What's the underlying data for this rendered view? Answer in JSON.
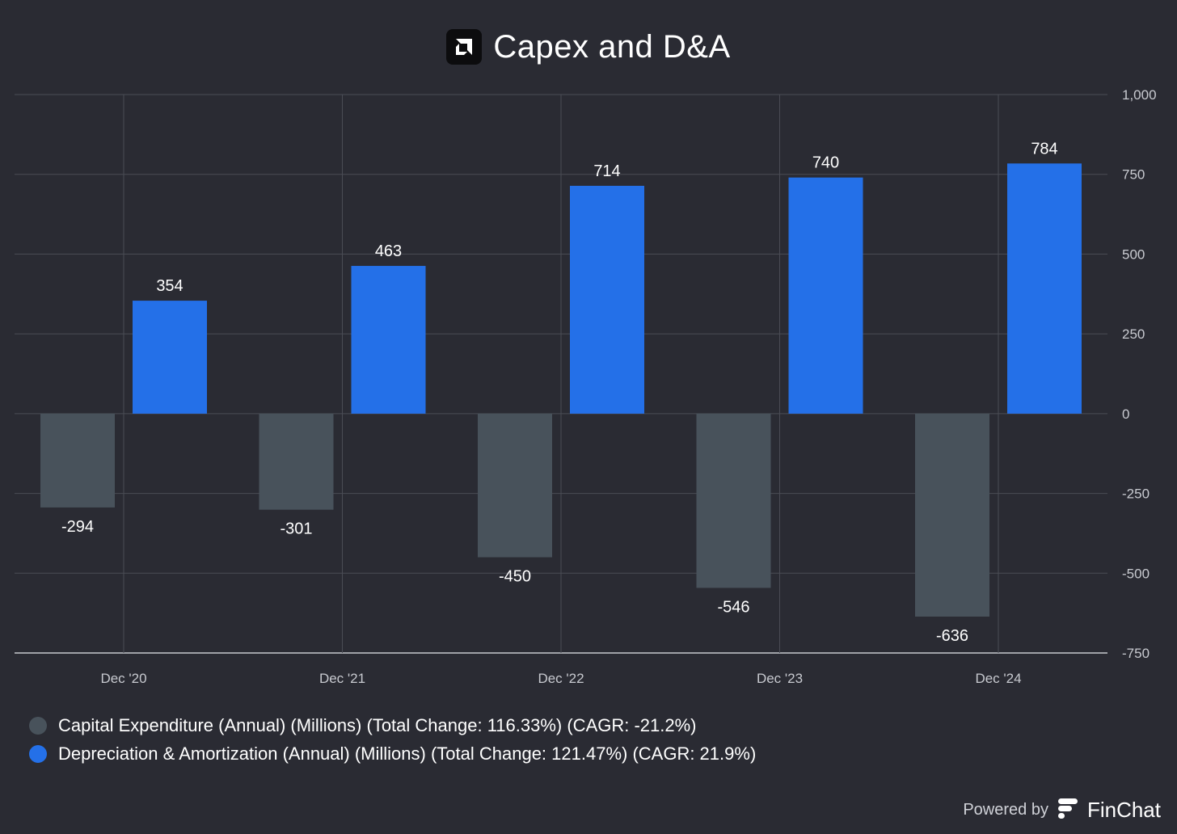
{
  "header": {
    "title": "Capex and D&A",
    "logo_icon": "amd-logo-icon"
  },
  "chart_data": {
    "type": "bar",
    "categories": [
      "Dec '20",
      "Dec '21",
      "Dec '22",
      "Dec '23",
      "Dec '24"
    ],
    "series": [
      {
        "name": "Capital Expenditure (Annual) (Millions) (Total Change: 116.33%) (CAGR: -21.2%)",
        "color": "#48525b",
        "values": [
          -294,
          -301,
          -450,
          -546,
          -636
        ]
      },
      {
        "name": "Depreciation & Amortization (Annual) (Millions) (Total Change: 121.47%) (CAGR: 21.9%)",
        "color": "#2470e8",
        "values": [
          354,
          463,
          714,
          740,
          784
        ]
      }
    ],
    "ylim": [
      -750,
      1000
    ],
    "yticks": [
      1000,
      750,
      500,
      250,
      0,
      -250,
      -500,
      -750
    ],
    "ytick_labels": [
      "1,000",
      "750",
      "500",
      "250",
      "0",
      "-250",
      "-500",
      "-750"
    ],
    "grid": true,
    "legend_position": "bottom-left",
    "y_axis_position": "right"
  },
  "legend": {
    "capex_label": "Capital Expenditure (Annual) (Millions) (Total Change: 116.33%) (CAGR: -21.2%)",
    "da_label": "Depreciation & Amortization (Annual) (Millions) (Total Change: 121.47%) (CAGR: 21.9%)"
  },
  "footer": {
    "powered_by": "Powered by",
    "brand": "FinChat",
    "brand_icon": "finchat-logo-icon"
  }
}
